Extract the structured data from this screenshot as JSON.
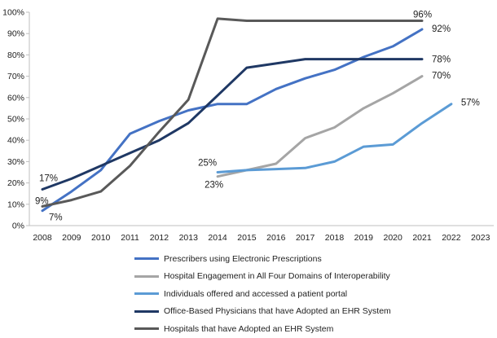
{
  "chart_data": {
    "type": "line",
    "title": "",
    "xlabel": "",
    "ylabel": "",
    "x": [
      2008,
      2009,
      2010,
      2011,
      2012,
      2013,
      2014,
      2015,
      2016,
      2017,
      2018,
      2019,
      2020,
      2021,
      2022,
      2023
    ],
    "x_tick_labels": [
      "2008",
      "2009",
      "2010",
      "2011",
      "2012",
      "2013",
      "2014",
      "2015",
      "2016",
      "2017",
      "2018",
      "2019",
      "2020",
      "2021",
      "2022",
      "2023"
    ],
    "ylim": [
      0,
      100
    ],
    "y_ticks": [
      0,
      10,
      20,
      30,
      40,
      50,
      60,
      70,
      80,
      90,
      100
    ],
    "y_tick_labels": [
      "0%",
      "10%",
      "20%",
      "30%",
      "40%",
      "50%",
      "60%",
      "70%",
      "80%",
      "90%",
      "100%"
    ],
    "grid": false,
    "legend_position": "bottom",
    "series": [
      {
        "name": "Prescribers using Electronic Prescriptions",
        "color": "#4472c4",
        "points": [
          [
            2008,
            7
          ],
          [
            2009,
            16
          ],
          [
            2010,
            26
          ],
          [
            2011,
            43
          ],
          [
            2012,
            49
          ],
          [
            2013,
            54
          ],
          [
            2014,
            57
          ],
          [
            2015,
            57
          ],
          [
            2016,
            64
          ],
          [
            2017,
            69
          ],
          [
            2018,
            73
          ],
          [
            2019,
            79
          ],
          [
            2020,
            84
          ],
          [
            2021,
            92
          ]
        ],
        "labels": [
          {
            "x": 2008,
            "text": "7%"
          },
          {
            "x": 2021,
            "text": "92%"
          }
        ]
      },
      {
        "name": "Hospital Engagement in All Four Domains of Interoperability",
        "color": "#a5a5a5",
        "points": [
          [
            2014,
            23
          ],
          [
            2015,
            26
          ],
          [
            2016,
            29
          ],
          [
            2017,
            41
          ],
          [
            2018,
            46
          ],
          [
            2019,
            55
          ],
          [
            2020,
            62
          ],
          [
            2021,
            70
          ]
        ],
        "labels": [
          {
            "x": 2014,
            "text": "23%"
          },
          {
            "x": 2021,
            "text": "70%"
          }
        ]
      },
      {
        "name": "Individuals offered and accessed a patient portal",
        "color": "#5b9bd5",
        "points": [
          [
            2014,
            25
          ],
          [
            2015,
            26
          ],
          [
            2016,
            26.5
          ],
          [
            2017,
            27
          ],
          [
            2018,
            30
          ],
          [
            2019,
            37
          ],
          [
            2020,
            38
          ],
          [
            2021,
            48
          ],
          [
            2022,
            57
          ]
        ],
        "labels": [
          {
            "x": 2014,
            "text": "25%"
          },
          {
            "x": 2022,
            "text": "57%"
          }
        ]
      },
      {
        "name": "Office-Based Physicians that have Adopted an EHR System",
        "color": "#1f3864",
        "points": [
          [
            2008,
            17
          ],
          [
            2009,
            22
          ],
          [
            2010,
            28
          ],
          [
            2011,
            34
          ],
          [
            2012,
            40
          ],
          [
            2013,
            48
          ],
          [
            2014,
            61
          ],
          [
            2015,
            74
          ],
          [
            2016,
            76
          ],
          [
            2017,
            78
          ],
          [
            2018,
            78
          ],
          [
            2019,
            78
          ],
          [
            2020,
            78
          ],
          [
            2021,
            78
          ]
        ],
        "labels": [
          {
            "x": 2008,
            "text": "17%"
          },
          {
            "x": 2021,
            "text": "78%"
          }
        ]
      },
      {
        "name": "Hospitals that have Adopted an EHR System",
        "color": "#595959",
        "points": [
          [
            2008,
            9
          ],
          [
            2009,
            12
          ],
          [
            2010,
            16
          ],
          [
            2011,
            28
          ],
          [
            2012,
            44
          ],
          [
            2013,
            59
          ],
          [
            2014,
            97
          ],
          [
            2015,
            96
          ],
          [
            2016,
            96
          ],
          [
            2017,
            96
          ],
          [
            2018,
            96
          ],
          [
            2019,
            96
          ],
          [
            2020,
            96
          ],
          [
            2021,
            96
          ]
        ],
        "labels": [
          {
            "x": 2008,
            "text": "9%"
          },
          {
            "x": 2021,
            "text": "96%"
          }
        ]
      }
    ]
  }
}
